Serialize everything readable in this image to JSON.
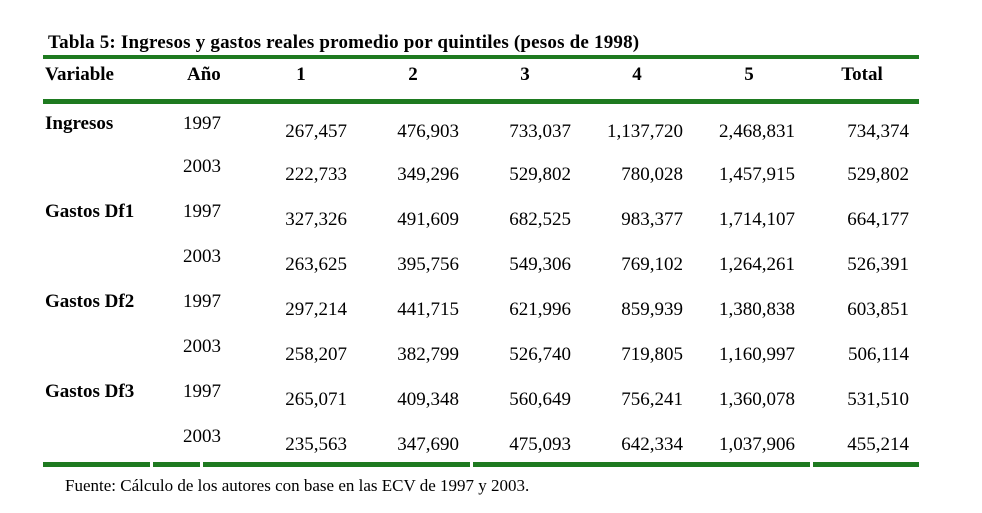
{
  "title": "Tabla 5: Ingresos y gastos reales promedio por quintiles (pesos de 1998)",
  "columns": [
    "Variable",
    "Año",
    "1",
    "2",
    "3",
    "4",
    "5",
    "Total"
  ],
  "rows": [
    {
      "variable": "Ingresos",
      "year": "1997",
      "values": [
        "267,457",
        "476,903",
        "733,037",
        "1,137,720",
        "2,468,831",
        "734,374"
      ]
    },
    {
      "variable": "",
      "year": "2003",
      "values": [
        "222,733",
        "349,296",
        "529,802",
        "780,028",
        "1,457,915",
        "529,802"
      ]
    },
    {
      "variable": "Gastos Df1",
      "year": "1997",
      "values": [
        "327,326",
        "491,609",
        "682,525",
        "983,377",
        "1,714,107",
        "664,177"
      ]
    },
    {
      "variable": "",
      "year": "2003",
      "values": [
        "263,625",
        "395,756",
        "549,306",
        "769,102",
        "1,264,261",
        "526,391"
      ]
    },
    {
      "variable": "Gastos Df2",
      "year": "1997",
      "values": [
        "297,214",
        "441,715",
        "621,996",
        "859,939",
        "1,380,838",
        "603,851"
      ]
    },
    {
      "variable": "",
      "year": "2003",
      "values": [
        "258,207",
        "382,799",
        "526,740",
        "719,805",
        "1,160,997",
        "506,114"
      ]
    },
    {
      "variable": "Gastos Df3",
      "year": "1997",
      "values": [
        "265,071",
        "409,348",
        "560,649",
        "756,241",
        "1,360,078",
        "531,510"
      ]
    },
    {
      "variable": "",
      "year": "2003",
      "values": [
        "235,563",
        "347,690",
        "475,093",
        "642,334",
        "1,037,906",
        "455,214"
      ]
    }
  ],
  "source": "Fuente: Cálculo de los autores con base en las ECV de 1997 y 2003.",
  "colors": {
    "rule_green": "#1e7a20",
    "text": "#000000",
    "background": "#ffffff"
  }
}
